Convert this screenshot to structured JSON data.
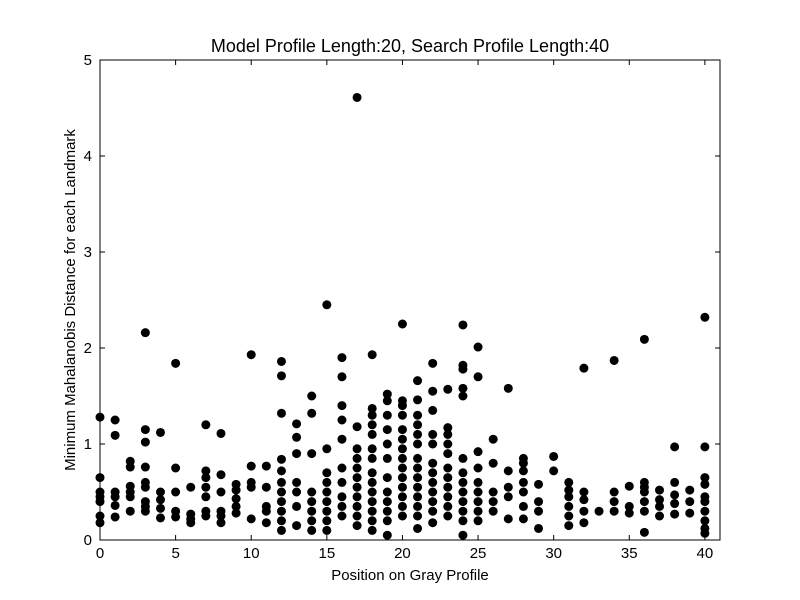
{
  "chart_data": {
    "type": "scatter",
    "title": "Model Profile Length:20, Search Profile Length:40",
    "xlabel": "Position on Gray Profile",
    "ylabel": "Minimum Mahalanobis Distance for each Landmark",
    "xlim": [
      0,
      41
    ],
    "ylim": [
      0,
      5
    ],
    "xticks": [
      0,
      5,
      10,
      15,
      20,
      25,
      30,
      35,
      40
    ],
    "yticks": [
      0,
      1,
      2,
      3,
      4,
      5
    ],
    "grid": false,
    "marker_color": "#000000",
    "series": [
      {
        "points": [
          [
            0,
            1.28
          ],
          [
            0,
            0.65
          ],
          [
            0,
            0.5
          ],
          [
            0,
            0.45
          ],
          [
            0,
            0.4
          ],
          [
            0,
            0.25
          ],
          [
            0,
            0.18
          ],
          [
            1,
            1.25
          ],
          [
            1,
            1.09
          ],
          [
            1,
            0.5
          ],
          [
            1,
            0.45
          ],
          [
            1,
            0.36
          ],
          [
            1,
            0.24
          ],
          [
            2,
            0.82
          ],
          [
            2,
            0.76
          ],
          [
            2,
            0.56
          ],
          [
            2,
            0.5
          ],
          [
            2,
            0.45
          ],
          [
            2,
            0.3
          ],
          [
            3,
            2.16
          ],
          [
            3,
            1.15
          ],
          [
            3,
            1.02
          ],
          [
            3,
            0.76
          ],
          [
            3,
            0.6
          ],
          [
            3,
            0.55
          ],
          [
            3,
            0.4
          ],
          [
            3,
            0.35
          ],
          [
            3,
            0.3
          ],
          [
            4,
            1.12
          ],
          [
            4,
            0.5
          ],
          [
            4,
            0.42
          ],
          [
            4,
            0.33
          ],
          [
            4,
            0.23
          ],
          [
            5,
            1.84
          ],
          [
            5,
            0.75
          ],
          [
            5,
            0.5
          ],
          [
            5,
            0.3
          ],
          [
            5,
            0.24
          ],
          [
            6,
            0.55
          ],
          [
            6,
            0.27
          ],
          [
            6,
            0.22
          ],
          [
            6,
            0.18
          ],
          [
            7,
            1.2
          ],
          [
            7,
            0.72
          ],
          [
            7,
            0.65
          ],
          [
            7,
            0.55
          ],
          [
            7,
            0.45
          ],
          [
            7,
            0.3
          ],
          [
            7,
            0.25
          ],
          [
            8,
            1.11
          ],
          [
            8,
            0.68
          ],
          [
            8,
            0.5
          ],
          [
            8,
            0.3
          ],
          [
            8,
            0.25
          ],
          [
            8,
            0.18
          ],
          [
            9,
            0.58
          ],
          [
            9,
            0.52
          ],
          [
            9,
            0.43
          ],
          [
            9,
            0.35
          ],
          [
            9,
            0.28
          ],
          [
            10,
            1.93
          ],
          [
            10,
            0.77
          ],
          [
            10,
            0.6
          ],
          [
            10,
            0.55
          ],
          [
            10,
            0.22
          ],
          [
            11,
            0.77
          ],
          [
            11,
            0.55
          ],
          [
            11,
            0.35
          ],
          [
            11,
            0.3
          ],
          [
            11,
            0.18
          ],
          [
            12,
            1.86
          ],
          [
            12,
            1.71
          ],
          [
            12,
            1.32
          ],
          [
            12,
            0.84
          ],
          [
            12,
            0.72
          ],
          [
            12,
            0.6
          ],
          [
            12,
            0.5
          ],
          [
            12,
            0.4
          ],
          [
            12,
            0.3
          ],
          [
            12,
            0.2
          ],
          [
            12,
            0.1
          ],
          [
            13,
            1.21
          ],
          [
            13,
            1.07
          ],
          [
            13,
            0.9
          ],
          [
            13,
            0.6
          ],
          [
            13,
            0.5
          ],
          [
            13,
            0.35
          ],
          [
            13,
            0.15
          ],
          [
            14,
            1.5
          ],
          [
            14,
            1.32
          ],
          [
            14,
            0.9
          ],
          [
            14,
            0.5
          ],
          [
            14,
            0.4
          ],
          [
            14,
            0.3
          ],
          [
            14,
            0.2
          ],
          [
            14,
            0.1
          ],
          [
            15,
            2.45
          ],
          [
            15,
            0.95
          ],
          [
            15,
            0.7
          ],
          [
            15,
            0.6
          ],
          [
            15,
            0.5
          ],
          [
            15,
            0.4
          ],
          [
            15,
            0.3
          ],
          [
            15,
            0.2
          ],
          [
            15,
            0.1
          ],
          [
            16,
            1.9
          ],
          [
            16,
            1.7
          ],
          [
            16,
            1.4
          ],
          [
            16,
            1.25
          ],
          [
            16,
            1.05
          ],
          [
            16,
            0.75
          ],
          [
            16,
            0.6
          ],
          [
            16,
            0.45
          ],
          [
            16,
            0.35
          ],
          [
            16,
            0.25
          ],
          [
            17,
            4.61
          ],
          [
            17,
            1.18
          ],
          [
            17,
            0.95
          ],
          [
            17,
            0.85
          ],
          [
            17,
            0.75
          ],
          [
            17,
            0.65
          ],
          [
            17,
            0.55
          ],
          [
            17,
            0.45
          ],
          [
            17,
            0.35
          ],
          [
            17,
            0.25
          ],
          [
            17,
            0.15
          ],
          [
            18,
            1.93
          ],
          [
            18,
            1.37
          ],
          [
            18,
            1.3
          ],
          [
            18,
            1.2
          ],
          [
            18,
            1.1
          ],
          [
            18,
            0.95
          ],
          [
            18,
            0.85
          ],
          [
            18,
            0.7
          ],
          [
            18,
            0.6
          ],
          [
            18,
            0.5
          ],
          [
            18,
            0.4
          ],
          [
            18,
            0.3
          ],
          [
            18,
            0.2
          ],
          [
            18,
            0.1
          ],
          [
            19,
            1.52
          ],
          [
            19,
            1.45
          ],
          [
            19,
            1.3
          ],
          [
            19,
            1.15
          ],
          [
            19,
            1.0
          ],
          [
            19,
            0.85
          ],
          [
            19,
            0.65
          ],
          [
            19,
            0.5
          ],
          [
            19,
            0.4
          ],
          [
            19,
            0.3
          ],
          [
            19,
            0.2
          ],
          [
            19,
            0.05
          ],
          [
            20,
            2.25
          ],
          [
            20,
            1.45
          ],
          [
            20,
            1.4
          ],
          [
            20,
            1.3
          ],
          [
            20,
            1.15
          ],
          [
            20,
            1.05
          ],
          [
            20,
            0.95
          ],
          [
            20,
            0.85
          ],
          [
            20,
            0.75
          ],
          [
            20,
            0.65
          ],
          [
            20,
            0.55
          ],
          [
            20,
            0.45
          ],
          [
            20,
            0.35
          ],
          [
            20,
            0.25
          ],
          [
            21,
            1.66
          ],
          [
            21,
            1.46
          ],
          [
            21,
            1.3
          ],
          [
            21,
            1.2
          ],
          [
            21,
            1.1
          ],
          [
            21,
            1.0
          ],
          [
            21,
            0.85
          ],
          [
            21,
            0.75
          ],
          [
            21,
            0.65
          ],
          [
            21,
            0.55
          ],
          [
            21,
            0.45
          ],
          [
            21,
            0.35
          ],
          [
            21,
            0.25
          ],
          [
            21,
            0.12
          ],
          [
            22,
            1.84
          ],
          [
            22,
            1.55
          ],
          [
            22,
            1.35
          ],
          [
            22,
            1.1
          ],
          [
            22,
            1.0
          ],
          [
            22,
            0.8
          ],
          [
            22,
            0.7
          ],
          [
            22,
            0.6
          ],
          [
            22,
            0.5
          ],
          [
            22,
            0.4
          ],
          [
            22,
            0.3
          ],
          [
            22,
            0.18
          ],
          [
            23,
            1.57
          ],
          [
            23,
            1.17
          ],
          [
            23,
            1.1
          ],
          [
            23,
            1.0
          ],
          [
            23,
            0.9
          ],
          [
            23,
            0.75
          ],
          [
            23,
            0.65
          ],
          [
            23,
            0.55
          ],
          [
            23,
            0.45
          ],
          [
            23,
            0.35
          ],
          [
            23,
            0.25
          ],
          [
            24,
            2.24
          ],
          [
            24,
            1.82
          ],
          [
            24,
            1.78
          ],
          [
            24,
            1.58
          ],
          [
            24,
            1.5
          ],
          [
            24,
            0.85
          ],
          [
            24,
            0.7
          ],
          [
            24,
            0.6
          ],
          [
            24,
            0.5
          ],
          [
            24,
            0.4
          ],
          [
            24,
            0.3
          ],
          [
            24,
            0.2
          ],
          [
            24,
            0.05
          ],
          [
            25,
            2.01
          ],
          [
            25,
            1.7
          ],
          [
            25,
            0.92
          ],
          [
            25,
            0.75
          ],
          [
            25,
            0.6
          ],
          [
            25,
            0.5
          ],
          [
            25,
            0.4
          ],
          [
            25,
            0.3
          ],
          [
            25,
            0.2
          ],
          [
            26,
            1.05
          ],
          [
            26,
            0.8
          ],
          [
            26,
            0.5
          ],
          [
            26,
            0.4
          ],
          [
            26,
            0.3
          ],
          [
            27,
            1.58
          ],
          [
            27,
            0.72
          ],
          [
            27,
            0.55
          ],
          [
            27,
            0.45
          ],
          [
            27,
            0.22
          ],
          [
            28,
            0.85
          ],
          [
            28,
            0.8
          ],
          [
            28,
            0.72
          ],
          [
            28,
            0.6
          ],
          [
            28,
            0.5
          ],
          [
            28,
            0.35
          ],
          [
            28,
            0.22
          ],
          [
            29,
            0.58
          ],
          [
            29,
            0.4
          ],
          [
            29,
            0.3
          ],
          [
            29,
            0.12
          ],
          [
            30,
            0.87
          ],
          [
            30,
            0.72
          ],
          [
            31,
            0.6
          ],
          [
            31,
            0.52
          ],
          [
            31,
            0.45
          ],
          [
            31,
            0.35
          ],
          [
            31,
            0.25
          ],
          [
            31,
            0.15
          ],
          [
            32,
            1.79
          ],
          [
            32,
            0.5
          ],
          [
            32,
            0.42
          ],
          [
            32,
            0.3
          ],
          [
            32,
            0.18
          ],
          [
            33,
            0.3
          ],
          [
            34,
            1.87
          ],
          [
            34,
            0.5
          ],
          [
            34,
            0.4
          ],
          [
            34,
            0.3
          ],
          [
            35,
            0.56
          ],
          [
            35,
            0.35
          ],
          [
            35,
            0.28
          ],
          [
            36,
            2.09
          ],
          [
            36,
            0.6
          ],
          [
            36,
            0.55
          ],
          [
            36,
            0.5
          ],
          [
            36,
            0.4
          ],
          [
            36,
            0.3
          ],
          [
            36,
            0.08
          ],
          [
            37,
            0.52
          ],
          [
            37,
            0.42
          ],
          [
            37,
            0.35
          ],
          [
            37,
            0.25
          ],
          [
            38,
            0.97
          ],
          [
            38,
            0.6
          ],
          [
            38,
            0.47
          ],
          [
            38,
            0.38
          ],
          [
            38,
            0.27
          ],
          [
            39,
            0.52
          ],
          [
            39,
            0.4
          ],
          [
            39,
            0.28
          ],
          [
            40,
            2.32
          ],
          [
            40,
            0.97
          ],
          [
            40,
            0.65
          ],
          [
            40,
            0.58
          ],
          [
            40,
            0.45
          ],
          [
            40,
            0.4
          ],
          [
            40,
            0.3
          ],
          [
            40,
            0.2
          ],
          [
            40,
            0.12
          ],
          [
            40,
            0.07
          ]
        ]
      }
    ]
  }
}
